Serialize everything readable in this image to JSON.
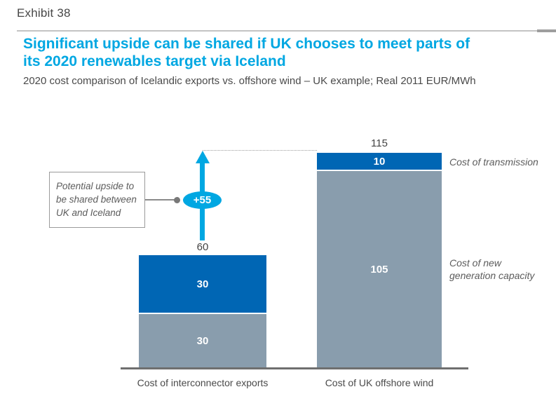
{
  "page": {
    "exhibit_label": "Exhibit 38"
  },
  "header": {
    "title_line1": "Significant upside can be shared if UK chooses to meet parts of",
    "title_line2": "its 2020 renewables target via Iceland",
    "subtitle": "2020 cost comparison of Icelandic exports vs. offshore wind – UK example; Real 2011 EUR/MWh"
  },
  "annotation": {
    "box_lines": [
      "Potential upside to",
      "be shared between",
      "UK and Iceland"
    ]
  },
  "labels": {
    "generation_line1": "Cost of new",
    "generation_line2": "generation capacity"
  },
  "colors": {
    "accent_cyan": "#00a7e2",
    "bar_blue": "#0066b4",
    "bar_gray": "#899dad",
    "axis_gray": "#6f6f6f",
    "text_dark": "#4a4a4a",
    "text_label_gray": "#5c5c5c"
  },
  "chart_data": {
    "type": "bar",
    "stacked": true,
    "title": "2020 cost comparison of Icelandic exports vs. offshore wind – UK example",
    "unit": "Real 2011 EUR/MWh",
    "categories": [
      "Cost of interconnector exports",
      "Cost of UK offshore wind"
    ],
    "series": [
      {
        "name": "Cost of new generation capacity",
        "color": "#899dad",
        "values": [
          30,
          105
        ]
      },
      {
        "name": "Cost of transmission",
        "color": "#0066b4",
        "values": [
          30,
          10
        ]
      }
    ],
    "totals": [
      60,
      115
    ],
    "delta_annotation": {
      "value": "+55",
      "from_total": 60,
      "to_total": 115,
      "note": "Potential upside to be shared between UK and Iceland"
    },
    "ylim": [
      0,
      120
    ],
    "grid": false,
    "legend_position": "right-inline"
  }
}
